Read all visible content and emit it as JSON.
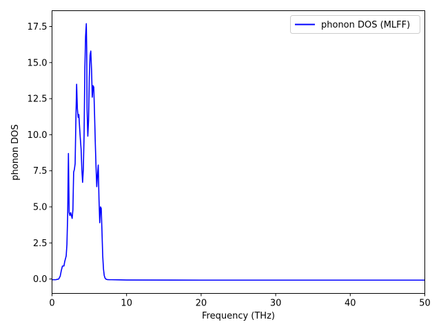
{
  "chart_data": {
    "type": "line",
    "title": "",
    "xlabel": "Frequency (THz)",
    "ylabel": "phonon DOS",
    "xlim": [
      0,
      50
    ],
    "ylim": [
      -1.0,
      18.6
    ],
    "xticks": [
      0,
      10,
      20,
      30,
      40,
      50
    ],
    "xtick_labels": [
      "0",
      "10",
      "20",
      "30",
      "40",
      "50"
    ],
    "yticks": [
      0.0,
      2.5,
      5.0,
      7.5,
      10.0,
      12.5,
      15.0,
      17.5
    ],
    "ytick_labels": [
      "0.0",
      "2.5",
      "5.0",
      "7.5",
      "10.0",
      "12.5",
      "15.0",
      "17.5"
    ],
    "grid": false,
    "legend_position": "top-right",
    "series": [
      {
        "name": "phonon DOS (MLFF)",
        "color": "#0000ff",
        "x": [
          0,
          0.5,
          0.9,
          1.1,
          1.25,
          1.4,
          1.5,
          1.6,
          1.7,
          1.8,
          1.9,
          2.0,
          2.1,
          2.2,
          2.3,
          2.4,
          2.5,
          2.6,
          2.7,
          2.8,
          2.9,
          3.0,
          3.1,
          3.2,
          3.3,
          3.4,
          3.5,
          3.6,
          3.7,
          3.8,
          3.9,
          4.0,
          4.1,
          4.2,
          4.3,
          4.4,
          4.5,
          4.6,
          4.65,
          4.7,
          4.8,
          4.9,
          5.0,
          5.1,
          5.2,
          5.3,
          5.4,
          5.5,
          5.6,
          5.7,
          5.8,
          5.9,
          6.0,
          6.1,
          6.2,
          6.3,
          6.4,
          6.5,
          6.6,
          6.7,
          6.8,
          6.9,
          7.0,
          7.1,
          7.2,
          7.4,
          7.7,
          8.0,
          9.0,
          10,
          20,
          30,
          40,
          50
        ],
        "y": [
          -0.05,
          -0.05,
          0.0,
          0.2,
          0.6,
          0.9,
          0.9,
          0.9,
          1.2,
          1.4,
          1.6,
          2.4,
          4.5,
          8.7,
          4.6,
          4.4,
          4.6,
          4.4,
          4.2,
          4.8,
          7.4,
          7.6,
          8.0,
          11.0,
          13.5,
          11.8,
          11.2,
          11.4,
          10.5,
          9.7,
          9.0,
          7.6,
          6.7,
          7.6,
          10.0,
          14.5,
          16.8,
          17.7,
          16.0,
          11.8,
          9.9,
          11.0,
          14.0,
          15.5,
          15.8,
          14.5,
          12.6,
          13.4,
          13.3,
          11.5,
          9.5,
          7.8,
          6.4,
          7.2,
          7.9,
          5.5,
          3.9,
          5.0,
          4.9,
          3.3,
          1.6,
          0.7,
          0.25,
          0.08,
          0.0,
          -0.04,
          -0.05,
          -0.05,
          -0.06,
          -0.07,
          -0.08,
          -0.08,
          -0.08,
          -0.08
        ]
      }
    ]
  }
}
